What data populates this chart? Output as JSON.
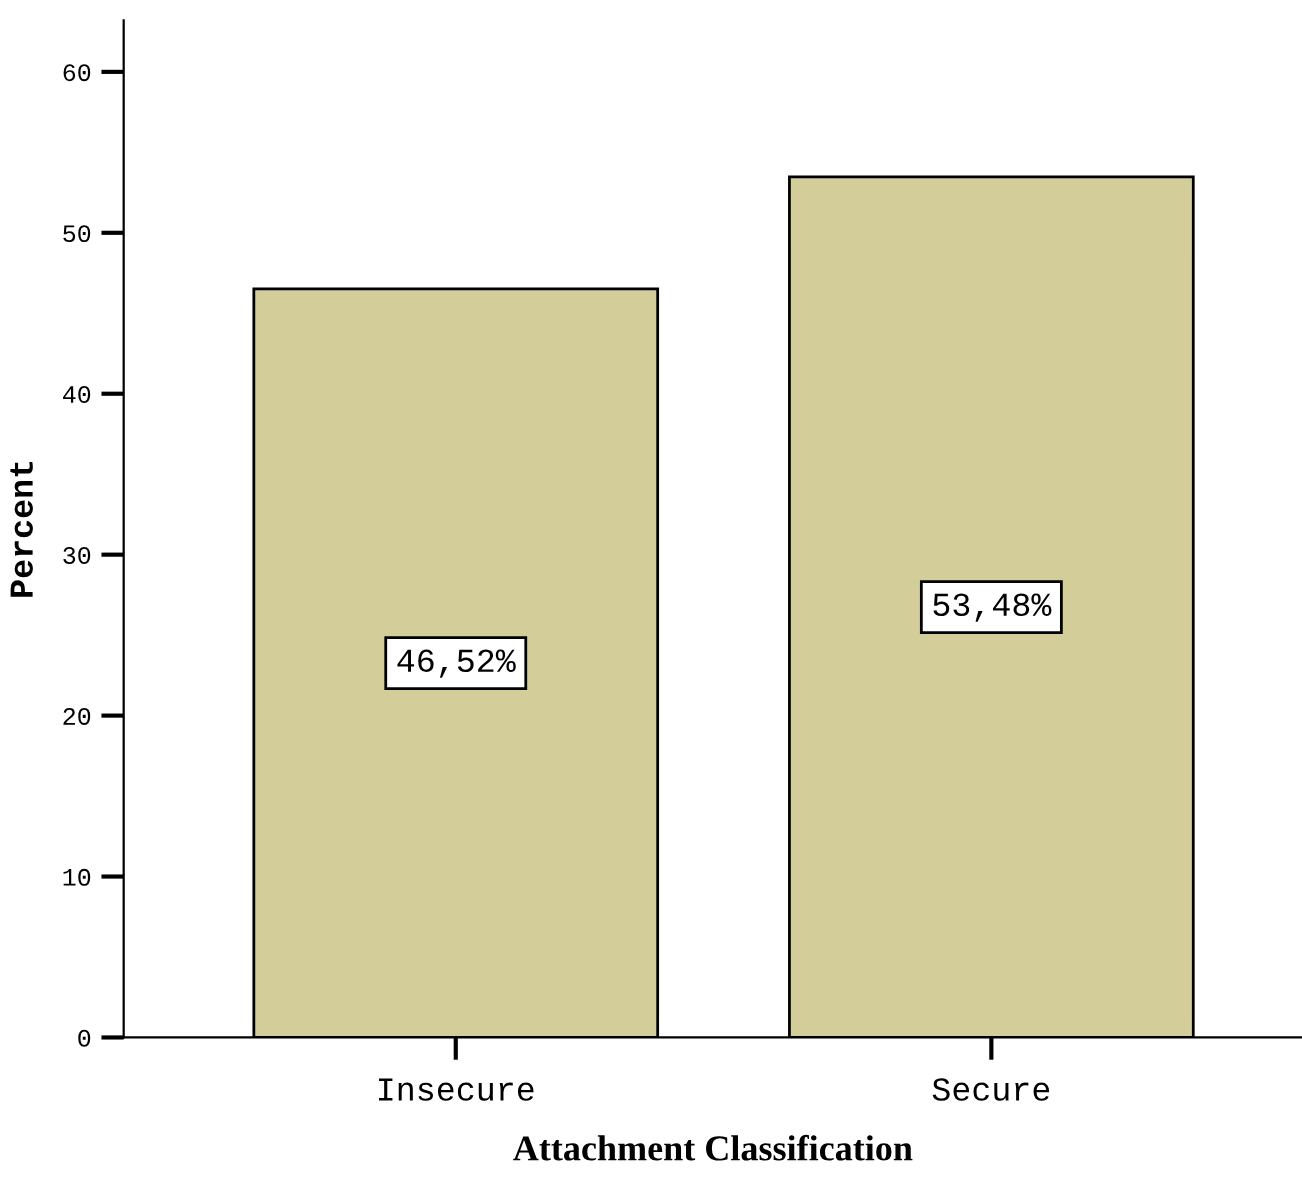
{
  "chart_data": {
    "type": "bar",
    "xlabel": "Attachment Classification",
    "ylabel": "Percent",
    "categories": [
      "Insecure",
      "Secure"
    ],
    "values": [
      46.52,
      53.48
    ],
    "value_labels": [
      "46,52%",
      "53,48%"
    ],
    "color": "#d3cd99",
    "ylim": [
      0,
      63.2
    ],
    "yticks": [
      0,
      10,
      20,
      30,
      40,
      50,
      60
    ],
    "grid": false
  }
}
